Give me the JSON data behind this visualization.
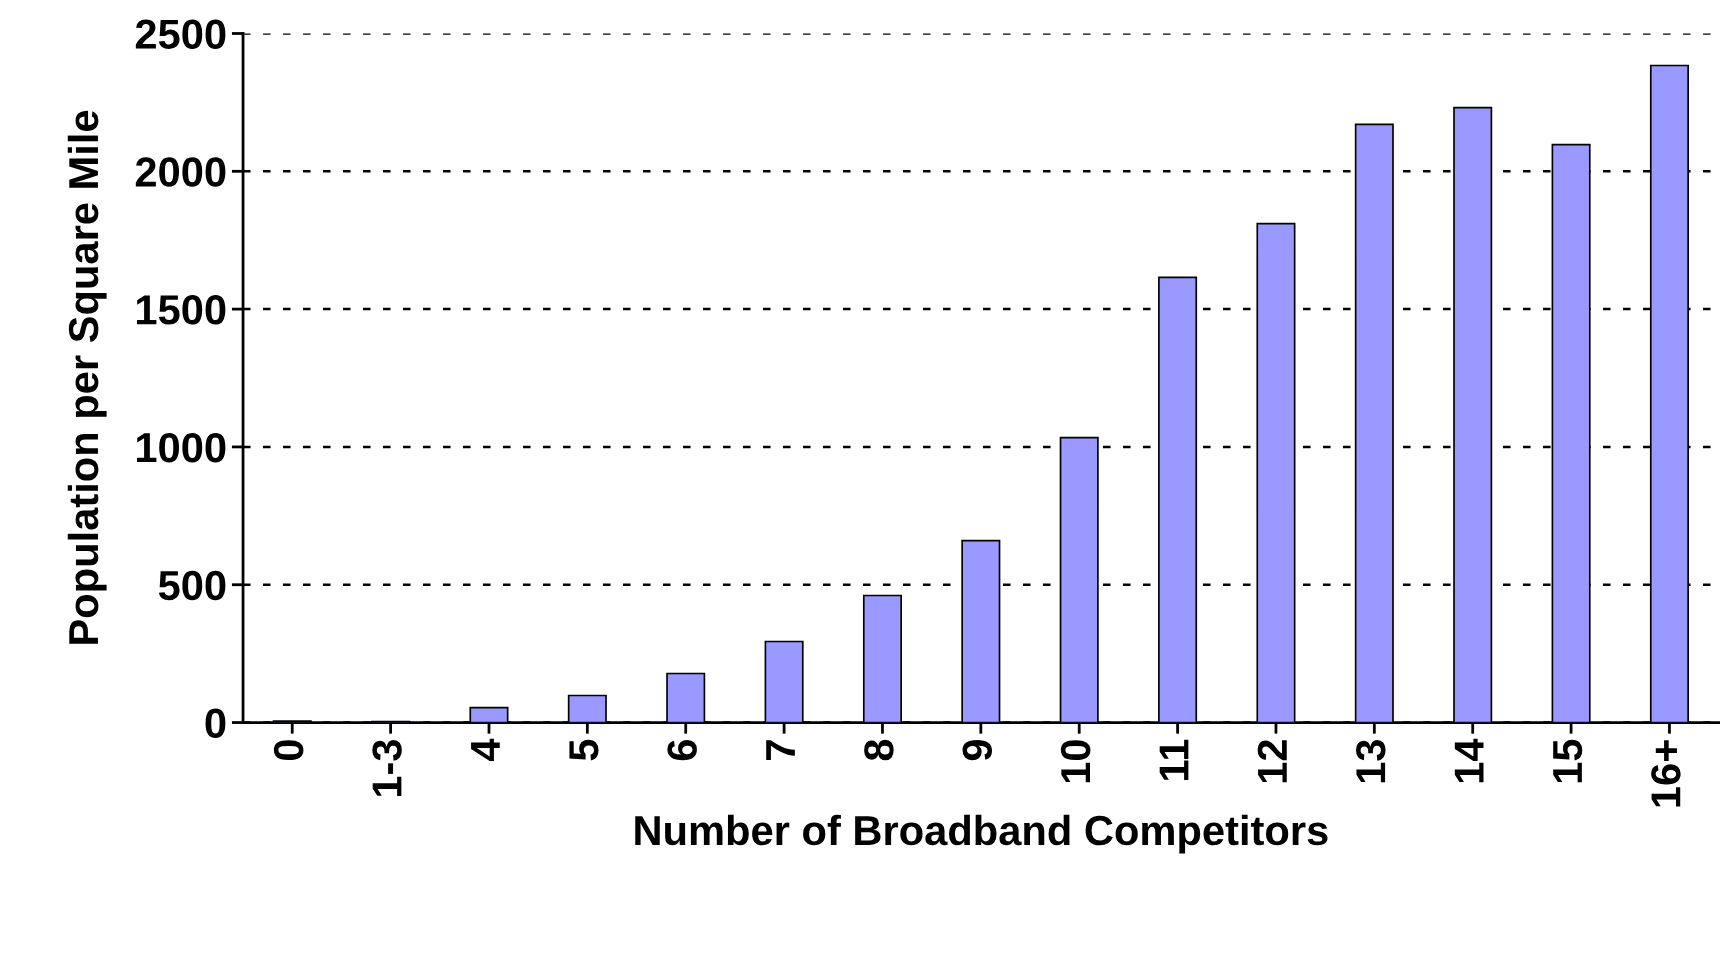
{
  "chart_data": {
    "type": "bar",
    "xlabel": "Number of Broadband Competitors",
    "ylabel": "Population per Square Mile",
    "categories": [
      "0",
      "1-3",
      "4",
      "5",
      "6",
      "7",
      "8",
      "9",
      "10",
      "11",
      "12",
      "13",
      "14",
      "15",
      "16+"
    ],
    "values": [
      5,
      3,
      54,
      98,
      178,
      294,
      461,
      660,
      1034,
      1615,
      1810,
      2170,
      2231,
      2097,
      2384
    ],
    "color": "#9999ff",
    "ylim": [
      0,
      2500
    ],
    "yticks": [
      0,
      500,
      1000,
      1500,
      2000,
      2500
    ],
    "grid": "y"
  }
}
